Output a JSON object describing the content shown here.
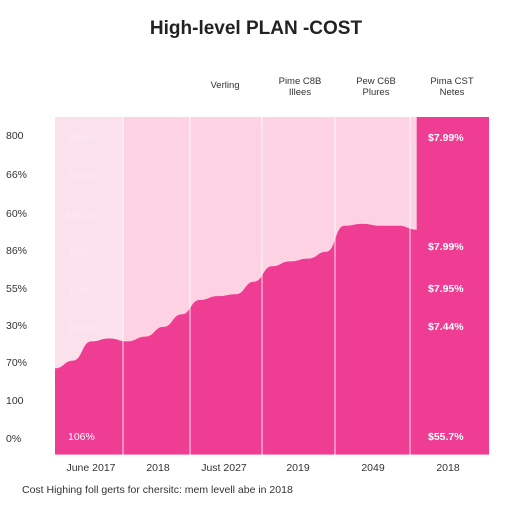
{
  "chart_data": {
    "type": "area",
    "title": "High-level PLAN -COST",
    "caption": "Cost Highing foll gerts for chersitc: mem levell abe in 2018",
    "column_headers": [
      {
        "line1": "Verling",
        "line2": ""
      },
      {
        "line1": "Pime C8B",
        "line2": "Illees"
      },
      {
        "line1": "Pew C6B",
        "line2": "Plures"
      },
      {
        "line1": "Pima CST",
        "line2": "Netes"
      }
    ],
    "y_tick_labels": [
      "800",
      "66%",
      "60%",
      "86%",
      "55%",
      "30%",
      "70%",
      "100",
      "0%"
    ],
    "x_tick_labels": [
      "June 2017",
      "2018",
      "Just 2027",
      "2019",
      "2049",
      "2018"
    ],
    "left_labels": [
      "50pm",
      "50pm",
      "$500m",
      "100m",
      "100m",
      "10pm",
      "106%"
    ],
    "right_labels": [
      "$7.99%",
      "$7.99%",
      "$7.95%",
      "$7.44%",
      "$55.7%"
    ],
    "series": [
      {
        "values": [
          [
            0,
            9.0
          ],
          [
            0.25,
            9.8
          ],
          [
            0.5,
            11.8
          ],
          [
            0.75,
            12.1
          ],
          [
            1.0,
            11.8
          ],
          [
            1.25,
            12.3
          ],
          [
            1.5,
            13.3
          ],
          [
            1.75,
            14.6
          ],
          [
            2.0,
            16.1
          ],
          [
            2.25,
            16.5
          ],
          [
            2.5,
            16.7
          ],
          [
            2.75,
            18.0
          ],
          [
            3.0,
            19.6
          ],
          [
            3.25,
            20.1
          ],
          [
            3.5,
            20.4
          ],
          [
            3.75,
            21.1
          ],
          [
            4.0,
            23.8
          ],
          [
            4.25,
            24.0
          ],
          [
            4.5,
            23.8
          ],
          [
            4.75,
            23.8
          ],
          [
            5.0,
            23.4
          ],
          [
            5.0,
            35.1
          ],
          [
            5.5,
            35.1
          ],
          [
            6.0,
            35.1
          ]
        ]
      }
    ],
    "ylim": [
      0,
      35.1
    ],
    "xlim": [
      0,
      6
    ],
    "colors": {
      "background_band": "#fdd3e4",
      "left_band": "#fbe1ec",
      "area": "#ef3d93",
      "grid": "#ffffff",
      "label_light": "#ffffff"
    }
  }
}
